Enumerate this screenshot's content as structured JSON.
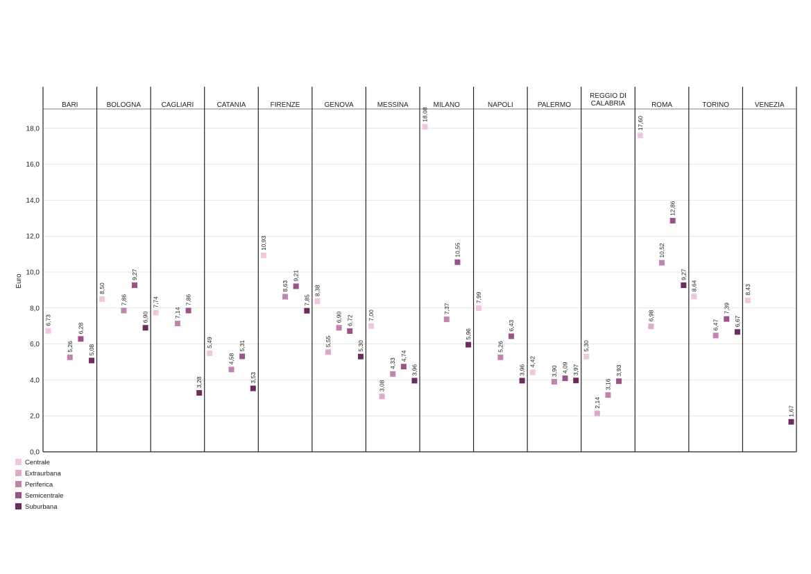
{
  "chart_data": {
    "type": "scatter",
    "ylabel": "Euro",
    "ylim": [
      0,
      19
    ],
    "yticks": [
      0,
      2,
      4,
      6,
      8,
      10,
      12,
      14,
      16,
      18
    ],
    "ytick_labels": [
      "0,0",
      "2,0",
      "4,0",
      "6,0",
      "8,0",
      "10,0",
      "12,0",
      "14,0",
      "16,0",
      "18,0"
    ],
    "grid": true,
    "legend_position": "bottom-left",
    "categories": [
      {
        "name": "Centrale",
        "color": "#f1c6e0"
      },
      {
        "name": "Extraurbana",
        "color": "#ddabc9"
      },
      {
        "name": "Periferica",
        "color": "#c185ad"
      },
      {
        "name": "Semicentrale",
        "color": "#9a5289"
      },
      {
        "name": "Suburbana",
        "color": "#6d2c5e"
      }
    ],
    "panels": [
      {
        "city": [
          "BARI"
        ],
        "points": [
          {
            "cat": "Centrale",
            "value": 6.73,
            "label": "6,73"
          },
          {
            "cat": "Periferica",
            "value": 5.26,
            "label": "5,26"
          },
          {
            "cat": "Semicentrale",
            "value": 6.28,
            "label": "6,28"
          },
          {
            "cat": "Suburbana",
            "value": 5.08,
            "label": "5,08"
          }
        ]
      },
      {
        "city": [
          "BOLOGNA"
        ],
        "points": [
          {
            "cat": "Centrale",
            "value": 8.5,
            "label": "8,50"
          },
          {
            "cat": "Periferica",
            "value": 7.86,
            "label": "7,86"
          },
          {
            "cat": "Semicentrale",
            "value": 9.27,
            "label": "9,27"
          },
          {
            "cat": "Suburbana",
            "value": 6.9,
            "label": "6,90"
          }
        ]
      },
      {
        "city": [
          "CAGLIARI"
        ],
        "points": [
          {
            "cat": "Centrale",
            "value": 7.74,
            "label": "7,74"
          },
          {
            "cat": "Periferica",
            "value": 7.14,
            "label": "7,14"
          },
          {
            "cat": "Semicentrale",
            "value": 7.86,
            "label": "7,86"
          },
          {
            "cat": "Suburbana",
            "value": 3.28,
            "label": "3,28"
          }
        ]
      },
      {
        "city": [
          "CATANIA"
        ],
        "points": [
          {
            "cat": "Centrale",
            "value": 5.49,
            "label": "5,49"
          },
          {
            "cat": "Periferica",
            "value": 4.58,
            "label": "4,58"
          },
          {
            "cat": "Semicentrale",
            "value": 5.31,
            "label": "5,31"
          },
          {
            "cat": "Suburbana",
            "value": 3.53,
            "label": "3,53"
          }
        ]
      },
      {
        "city": [
          "FIRENZE"
        ],
        "points": [
          {
            "cat": "Centrale",
            "value": 10.93,
            "label": "10,93"
          },
          {
            "cat": "Periferica",
            "value": 8.63,
            "label": "8,63"
          },
          {
            "cat": "Semicentrale",
            "value": 9.21,
            "label": "9,21"
          },
          {
            "cat": "Suburbana",
            "value": 7.85,
            "label": "7,85"
          }
        ]
      },
      {
        "city": [
          "GENOVA"
        ],
        "points": [
          {
            "cat": "Centrale",
            "value": 8.38,
            "label": "8,38"
          },
          {
            "cat": "Extraurbana",
            "value": 5.55,
            "label": "5,55"
          },
          {
            "cat": "Periferica",
            "value": 6.9,
            "label": "6,90"
          },
          {
            "cat": "Semicentrale",
            "value": 6.72,
            "label": "6,72"
          },
          {
            "cat": "Suburbana",
            "value": 5.3,
            "label": "5,30"
          }
        ]
      },
      {
        "city": [
          "MESSINA"
        ],
        "points": [
          {
            "cat": "Centrale",
            "value": 7.0,
            "label": "7,00"
          },
          {
            "cat": "Extraurbana",
            "value": 3.08,
            "label": "3,08"
          },
          {
            "cat": "Periferica",
            "value": 4.33,
            "label": "4,33"
          },
          {
            "cat": "Semicentrale",
            "value": 4.74,
            "label": "4,74"
          },
          {
            "cat": "Suburbana",
            "value": 3.96,
            "label": "3,96"
          }
        ]
      },
      {
        "city": [
          "MILANO"
        ],
        "points": [
          {
            "cat": "Centrale",
            "value": 18.08,
            "label": "18,08"
          },
          {
            "cat": "Periferica",
            "value": 7.37,
            "label": "7,37"
          },
          {
            "cat": "Semicentrale",
            "value": 10.55,
            "label": "10,55"
          },
          {
            "cat": "Suburbana",
            "value": 5.96,
            "label": "5,96"
          }
        ]
      },
      {
        "city": [
          "NAPOLI"
        ],
        "points": [
          {
            "cat": "Centrale",
            "value": 7.99,
            "label": "7,99"
          },
          {
            "cat": "Periferica",
            "value": 5.26,
            "label": "5,26"
          },
          {
            "cat": "Semicentrale",
            "value": 6.43,
            "label": "6,43"
          },
          {
            "cat": "Suburbana",
            "value": 3.96,
            "label": "3,96"
          }
        ]
      },
      {
        "city": [
          "PALERMO"
        ],
        "points": [
          {
            "cat": "Centrale",
            "value": 4.42,
            "label": "4,42"
          },
          {
            "cat": "Periferica",
            "value": 3.9,
            "label": "3,90"
          },
          {
            "cat": "Semicentrale",
            "value": 4.09,
            "label": "4,09"
          },
          {
            "cat": "Suburbana",
            "value": 3.97,
            "label": "3,97"
          }
        ]
      },
      {
        "city": [
          "REGGIO DI",
          "CALABRIA"
        ],
        "points": [
          {
            "cat": "Centrale",
            "value": 5.3,
            "label": "5,30"
          },
          {
            "cat": "Extraurbana",
            "value": 2.14,
            "label": "2,14"
          },
          {
            "cat": "Periferica",
            "value": 3.16,
            "label": "3,16"
          },
          {
            "cat": "Semicentrale",
            "value": 3.93,
            "label": "3,93"
          }
        ]
      },
      {
        "city": [
          "ROMA"
        ],
        "points": [
          {
            "cat": "Centrale",
            "value": 17.6,
            "label": "17,60"
          },
          {
            "cat": "Extraurbana",
            "value": 6.98,
            "label": "6,98"
          },
          {
            "cat": "Periferica",
            "value": 10.52,
            "label": "10,52"
          },
          {
            "cat": "Semicentrale",
            "value": 12.86,
            "label": "12,86"
          },
          {
            "cat": "Suburbana",
            "value": 9.27,
            "label": "9,27"
          }
        ]
      },
      {
        "city": [
          "TORINO"
        ],
        "points": [
          {
            "cat": "Centrale",
            "value": 8.64,
            "label": "8,64"
          },
          {
            "cat": "Periferica",
            "value": 6.47,
            "label": "6,47"
          },
          {
            "cat": "Semicentrale",
            "value": 7.39,
            "label": "7,39"
          },
          {
            "cat": "Suburbana",
            "value": 6.67,
            "label": "6,67"
          }
        ]
      },
      {
        "city": [
          "VENEZIA"
        ],
        "points": [
          {
            "cat": "Centrale",
            "value": 8.43,
            "label": "8,43"
          },
          {
            "cat": "Suburbana",
            "value": 1.67,
            "label": "1,67"
          }
        ]
      }
    ]
  }
}
